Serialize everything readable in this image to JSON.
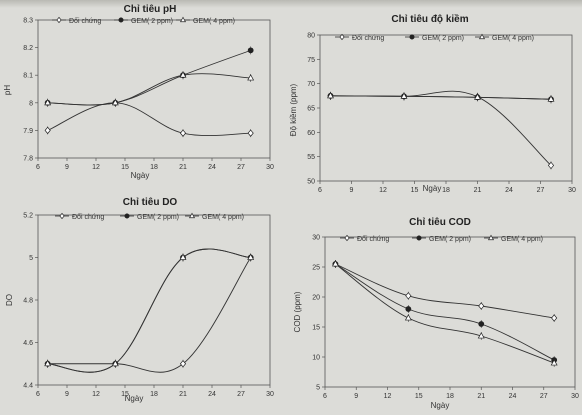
{
  "chart_data": [
    {
      "type": "line",
      "title": "Chỉ tiêu pH",
      "xlabel": "Ngày",
      "ylabel": "pH",
      "xlim": [
        6,
        30
      ],
      "ylim": [
        7.8,
        8.3
      ],
      "xticks": [
        "6",
        "9",
        "12",
        "15",
        "18",
        "21",
        "24",
        "27",
        "30"
      ],
      "yticks": [
        "7.8",
        "7.9",
        "8",
        "8.1",
        "8.2",
        "8.3"
      ],
      "legend": "top",
      "series": [
        {
          "name": "Đối chứng",
          "marker": "diamond-open",
          "x": [
            7,
            14,
            21,
            28
          ],
          "y": [
            7.9,
            8.0,
            7.89,
            7.89
          ]
        },
        {
          "name": "GEM( 2 ppm)",
          "marker": "circle-filled",
          "x": [
            7,
            14,
            21,
            28
          ],
          "y": [
            8.0,
            8.0,
            8.1,
            8.19
          ]
        },
        {
          "name": "GEM( 4 ppm)",
          "marker": "triangle-open",
          "x": [
            7,
            14,
            21,
            28
          ],
          "y": [
            8.0,
            8.0,
            8.1,
            8.09
          ]
        }
      ]
    },
    {
      "type": "line",
      "title": "Chỉ tiêu độ kiềm",
      "xlabel": "Ngày",
      "ylabel": "Độ kiềm (ppm)",
      "xlim": [
        6,
        30
      ],
      "ylim": [
        50,
        80
      ],
      "xticks": [
        "6",
        "9",
        "12",
        "15",
        "18",
        "21",
        "24",
        "27",
        "30"
      ],
      "yticks": [
        "50",
        "55",
        "60",
        "65",
        "70",
        "75",
        "80"
      ],
      "legend": "top",
      "series": [
        {
          "name": "Đối chứng",
          "marker": "diamond-open",
          "x": [
            7,
            14,
            21,
            28
          ],
          "y": [
            67.5,
            67.4,
            67.3,
            53.2
          ]
        },
        {
          "name": "GEM( 2 ppm)",
          "marker": "circle-filled",
          "x": [
            7,
            14,
            21,
            28
          ],
          "y": [
            67.5,
            67.4,
            67.2,
            66.8
          ]
        },
        {
          "name": "GEM( 4 ppm)",
          "marker": "triangle-open",
          "x": [
            7,
            14,
            21,
            28
          ],
          "y": [
            67.5,
            67.4,
            67.2,
            66.8
          ]
        }
      ]
    },
    {
      "type": "line",
      "title": "Chỉ tiêu DO",
      "xlabel": "Ngày",
      "ylabel": "DO",
      "xlim": [
        6,
        30
      ],
      "ylim": [
        4.4,
        5.2
      ],
      "xticks": [
        "6",
        "9",
        "12",
        "15",
        "18",
        "21",
        "24",
        "27",
        "30"
      ],
      "yticks": [
        "4.4",
        "4.6",
        "4.8",
        "5",
        "5.2"
      ],
      "legend": "top",
      "series": [
        {
          "name": "Đối chứng",
          "marker": "diamond-open",
          "x": [
            7,
            14,
            21,
            28
          ],
          "y": [
            4.5,
            4.5,
            4.5,
            5.0
          ]
        },
        {
          "name": "GEM( 2 ppm)",
          "marker": "circle-filled",
          "x": [
            7,
            14,
            21,
            28
          ],
          "y": [
            4.5,
            4.5,
            5.0,
            5.0
          ]
        },
        {
          "name": "GEM( 4 ppm)",
          "marker": "triangle-open",
          "x": [
            7,
            14,
            21,
            28
          ],
          "y": [
            4.5,
            4.5,
            5.0,
            5.0
          ]
        }
      ]
    },
    {
      "type": "line",
      "title": "Chỉ tiêu COD",
      "xlabel": "Ngày",
      "ylabel": "COD (ppm)",
      "xlim": [
        6,
        30
      ],
      "ylim": [
        5,
        30
      ],
      "xticks": [
        "6",
        "9",
        "12",
        "15",
        "18",
        "21",
        "24",
        "27",
        "30"
      ],
      "yticks": [
        "5",
        "10",
        "15",
        "20",
        "25",
        "30"
      ],
      "legend": "top",
      "series": [
        {
          "name": "Đối chứng",
          "marker": "diamond-open",
          "x": [
            7,
            14,
            21,
            28
          ],
          "y": [
            25.5,
            20.2,
            18.5,
            16.5
          ]
        },
        {
          "name": "GEM( 2 ppm)",
          "marker": "circle-filled",
          "x": [
            7,
            14,
            21,
            28
          ],
          "y": [
            25.5,
            18.0,
            15.5,
            9.5
          ]
        },
        {
          "name": "GEM( 4 ppm)",
          "marker": "triangle-open",
          "x": [
            7,
            14,
            21,
            28
          ],
          "y": [
            25.5,
            16.5,
            13.5,
            9.0
          ]
        }
      ]
    }
  ]
}
